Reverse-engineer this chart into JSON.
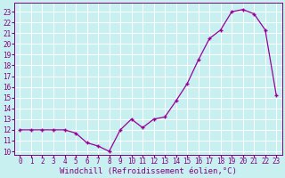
{
  "hours": [
    0,
    1,
    2,
    3,
    4,
    5,
    6,
    7,
    8,
    9,
    10,
    11,
    12,
    13,
    14,
    15,
    16,
    17,
    18,
    19,
    20,
    21,
    22,
    23
  ],
  "values": [
    12,
    12,
    12,
    12,
    12,
    11.7,
    10.8,
    10.5,
    10.0,
    12.0,
    13.0,
    12.2,
    13.0,
    13.2,
    14.7,
    16.3,
    18.5,
    20.5,
    21.3,
    23.0,
    23.2,
    22.8,
    21.3,
    15.2
  ],
  "xlabel": "Windchill (Refroidissement éolien,°C)",
  "yticks": [
    10,
    11,
    12,
    13,
    14,
    15,
    16,
    17,
    18,
    19,
    20,
    21,
    22,
    23
  ],
  "xticks": [
    0,
    1,
    2,
    3,
    4,
    5,
    6,
    7,
    8,
    9,
    10,
    11,
    12,
    13,
    14,
    15,
    16,
    17,
    18,
    19,
    20,
    21,
    22,
    23
  ],
  "line_color": "#990099",
  "bg_color": "#c8f0f0",
  "grid_color": "#aadddd",
  "axis_label_color": "#800080",
  "tick_label_color": "#800080",
  "xlabel_fontsize": 6.5,
  "tick_fontsize": 5.5
}
